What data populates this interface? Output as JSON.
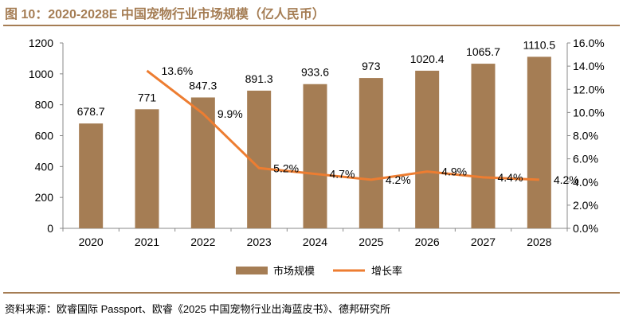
{
  "title": "图 10：2020-2028E 中国宠物行业市场规模（亿人民币）",
  "source": "资料来源：欧睿国际 Passport、欧睿《2025 中国宠物行业出海蓝皮书》、德邦研究所",
  "colors": {
    "bar": "#A57D54",
    "line": "#ED7D31",
    "accent": "#A57D54"
  },
  "chart_data": {
    "type": "bar+line",
    "categories": [
      "2020",
      "2021",
      "2022",
      "2023",
      "2024",
      "2025",
      "2026",
      "2027",
      "2028"
    ],
    "series": [
      {
        "name": "市场规模",
        "type": "bar",
        "axis": "left",
        "values": [
          678.7,
          771,
          847.3,
          891.3,
          933.6,
          973,
          1020.4,
          1065.7,
          1110.5
        ],
        "labels": [
          "678.7",
          "771",
          "847.3",
          "891.3",
          "933.6",
          "973",
          "1020.4",
          "1065.7",
          "1110.5"
        ]
      },
      {
        "name": "增长率",
        "type": "line",
        "axis": "right",
        "values": [
          null,
          13.6,
          9.9,
          5.2,
          4.7,
          4.2,
          4.9,
          4.4,
          4.2
        ],
        "labels": [
          "",
          "13.6%",
          "9.9%",
          "5.2%",
          "4.7%",
          "4.2%",
          "4.9%",
          "4.4%",
          "4.2%"
        ]
      }
    ],
    "left_axis": {
      "ylim": [
        0,
        1200
      ],
      "ticks": [
        "0",
        "200",
        "400",
        "600",
        "800",
        "1000",
        "1200"
      ]
    },
    "right_axis": {
      "ylim": [
        0,
        16
      ],
      "ticks": [
        "0.0%",
        "2.0%",
        "4.0%",
        "6.0%",
        "8.0%",
        "10.0%",
        "12.0%",
        "14.0%",
        "16.0%"
      ]
    },
    "grid": false,
    "legend": "bottom"
  }
}
